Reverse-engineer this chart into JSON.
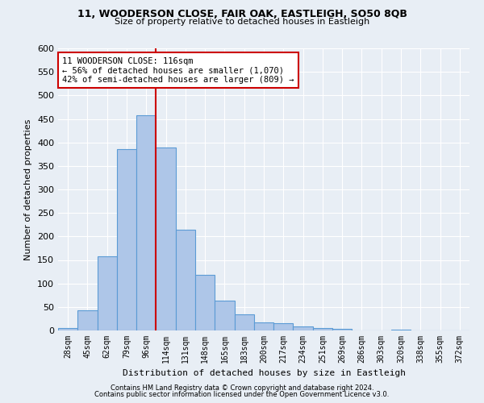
{
  "title": "11, WOODERSON CLOSE, FAIR OAK, EASTLEIGH, SO50 8QB",
  "subtitle": "Size of property relative to detached houses in Eastleigh",
  "xlabel": "Distribution of detached houses by size in Eastleigh",
  "ylabel": "Number of detached properties",
  "bar_color": "#aec6e8",
  "bar_edge_color": "#5b9bd5",
  "background_color": "#e8eef5",
  "grid_color": "#ffffff",
  "categories": [
    "28sqm",
    "45sqm",
    "62sqm",
    "79sqm",
    "96sqm",
    "114sqm",
    "131sqm",
    "148sqm",
    "165sqm",
    "183sqm",
    "200sqm",
    "217sqm",
    "234sqm",
    "251sqm",
    "269sqm",
    "286sqm",
    "303sqm",
    "320sqm",
    "338sqm",
    "355sqm",
    "372sqm"
  ],
  "values": [
    5,
    43,
    157,
    385,
    457,
    390,
    215,
    118,
    63,
    35,
    17,
    15,
    9,
    5,
    3,
    0,
    0,
    2,
    0,
    0,
    0
  ],
  "ylim": [
    0,
    600
  ],
  "yticks": [
    0,
    50,
    100,
    150,
    200,
    250,
    300,
    350,
    400,
    450,
    500,
    550,
    600
  ],
  "vline_color": "#cc0000",
  "vline_x_index": 4.5,
  "property_line_label": "11 WOODERSON CLOSE: 116sqm",
  "annotation_line1": "← 56% of detached houses are smaller (1,070)",
  "annotation_line2": "42% of semi-detached houses are larger (809) →",
  "annotation_box_color": "#ffffff",
  "annotation_box_edge": "#cc0000",
  "footer1": "Contains HM Land Registry data © Crown copyright and database right 2024.",
  "footer2": "Contains public sector information licensed under the Open Government Licence v3.0."
}
